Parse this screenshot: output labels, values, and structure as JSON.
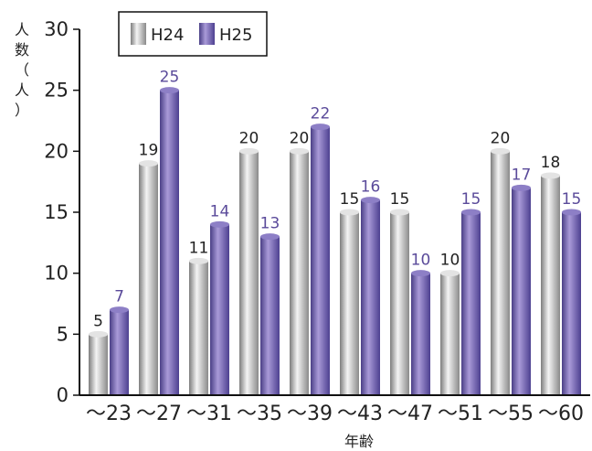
{
  "chart_data": {
    "type": "bar",
    "xlabel": "年齢",
    "ylabel": "人数（人）",
    "ylim": [
      0,
      30
    ],
    "yticks": [
      0,
      5,
      10,
      15,
      20,
      25,
      30
    ],
    "grid": false,
    "legend_position": "top-left",
    "categories": [
      "～23",
      "～27",
      "～31",
      "～35",
      "～39",
      "～43",
      "～47",
      "～51",
      "～55",
      "～60"
    ],
    "series": [
      {
        "name": "H24",
        "values": [
          5,
          19,
          11,
          20,
          20,
          15,
          15,
          10,
          20,
          18
        ]
      },
      {
        "name": "H25",
        "values": [
          7,
          25,
          14,
          13,
          22,
          16,
          10,
          15,
          17,
          15
        ]
      }
    ]
  }
}
